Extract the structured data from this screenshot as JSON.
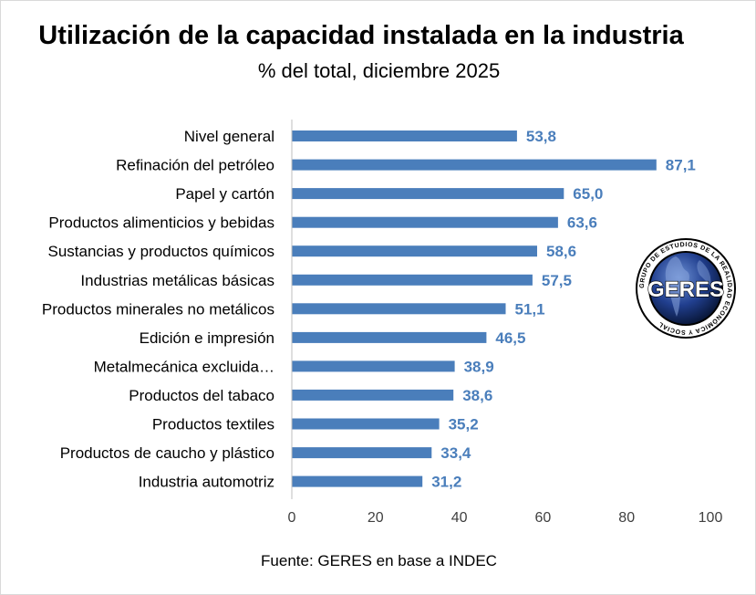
{
  "colors": {
    "bar": "#4a7ebb",
    "value_label": "#4a7ebb",
    "axis": "#bfbfbf"
  },
  "logo": {
    "text": "GERES",
    "ring_text": "GRUPO DE ESTUDIOS DE LA REALIDAD ECONÓMICA Y SOCIAL"
  },
  "source": "Fuente: GERES en base a INDEC",
  "chart_data": {
    "type": "bar",
    "orientation": "horizontal",
    "title": "Utilización de la capacidad instalada en la industria",
    "subtitle": "% del total, diciembre 2025",
    "categories": [
      "Nivel general",
      "Refinación del petróleo",
      "Papel y cartón",
      "Productos alimenticios y bebidas",
      "Sustancias y productos químicos",
      "Industrias metálicas básicas",
      "Productos minerales no metálicos",
      "Edición e impresión",
      "Metalmecánica excluida…",
      "Productos del tabaco",
      "Productos textiles",
      "Productos de caucho y plástico",
      "Industria automotriz"
    ],
    "values": [
      53.8,
      87.1,
      65.0,
      63.6,
      58.6,
      57.5,
      51.1,
      46.5,
      38.9,
      38.6,
      35.2,
      33.4,
      31.2
    ],
    "value_labels": [
      "53,8",
      "87,1",
      "65,0",
      "63,6",
      "58,6",
      "57,5",
      "51,1",
      "46,5",
      "38,9",
      "38,6",
      "35,2",
      "33,4",
      "31,2"
    ],
    "xlim": [
      0,
      100
    ],
    "xticks": [
      0,
      20,
      40,
      60,
      80,
      100
    ],
    "xtick_labels": [
      "0",
      "20",
      "40",
      "60",
      "80",
      "100"
    ],
    "xlabel": "",
    "ylabel": "",
    "grid": false,
    "legend": "none"
  }
}
